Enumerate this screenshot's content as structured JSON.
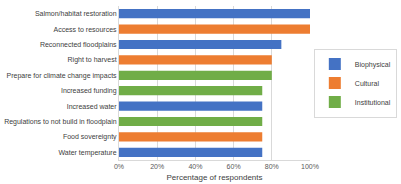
{
  "chart_data": {
    "type": "bar",
    "orientation": "horizontal",
    "categories": [
      "Salmon/habitat restoration",
      "Access to resources",
      "Reconnected floodplains",
      "Right to harvest",
      "Prepare for climate change impacts",
      "Increased funding",
      "Increased water",
      "Regulations to not build in floodplain",
      "Food sovereignty",
      "Water temperature"
    ],
    "series": [
      {
        "name": "Biophysical",
        "color": "#4472c4",
        "values": [
          100,
          null,
          85,
          null,
          null,
          null,
          75,
          null,
          null,
          75
        ]
      },
      {
        "name": "Cultural",
        "color": "#ed7d31",
        "values": [
          null,
          100,
          null,
          80,
          null,
          null,
          null,
          null,
          75,
          null
        ]
      },
      {
        "name": "Institutional",
        "color": "#70ad47",
        "values": [
          null,
          null,
          null,
          null,
          80,
          75,
          null,
          75,
          null,
          null
        ]
      }
    ],
    "x_label": "Percentage of respondents",
    "xlim": [
      0,
      100
    ],
    "xticks": [
      {
        "value": 0,
        "label": "0%"
      },
      {
        "value": 20,
        "label": "20%"
      },
      {
        "value": 40,
        "label": "40%"
      },
      {
        "value": 60,
        "label": "60%"
      },
      {
        "value": 80,
        "label": "80%"
      },
      {
        "value": 100,
        "label": "100%"
      }
    ],
    "grid": true,
    "legend": "right"
  }
}
